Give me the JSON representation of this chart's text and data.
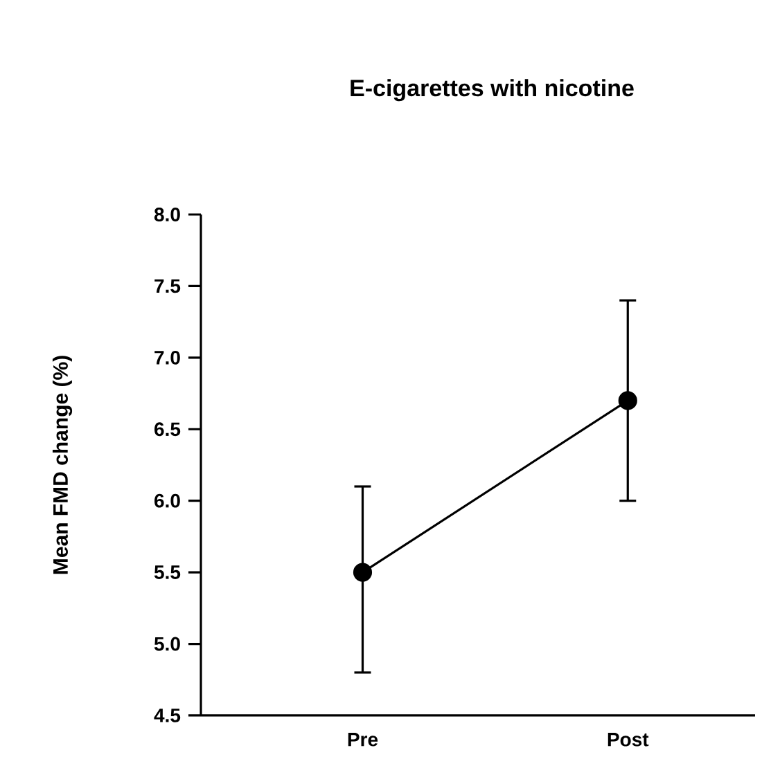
{
  "chart_data": {
    "type": "line",
    "title": "E-cigarettes with nicotine",
    "ylabel": "Mean FMD change (%)",
    "categories": [
      "Pre",
      "Post"
    ],
    "series": [
      {
        "color": "#000000",
        "values": [
          5.5,
          6.7
        ],
        "errors": [
          [
            4.8,
            6.1
          ],
          [
            6.0,
            7.4
          ]
        ]
      }
    ],
    "ylim": [
      4.5,
      8.0
    ],
    "yticks": [
      {
        "value": 4.5,
        "label": "4.5"
      },
      {
        "value": 5.0,
        "label": "5.0"
      },
      {
        "value": 5.5,
        "label": "5.5"
      },
      {
        "value": 6.0,
        "label": "6.0"
      },
      {
        "value": 6.5,
        "label": "6.5"
      },
      {
        "value": 7.0,
        "label": "7.0"
      },
      {
        "value": 7.5,
        "label": "7.5"
      },
      {
        "value": 8.0,
        "label": "8.0"
      }
    ],
    "marker": "circle",
    "line_style": "solid",
    "grid": false
  }
}
